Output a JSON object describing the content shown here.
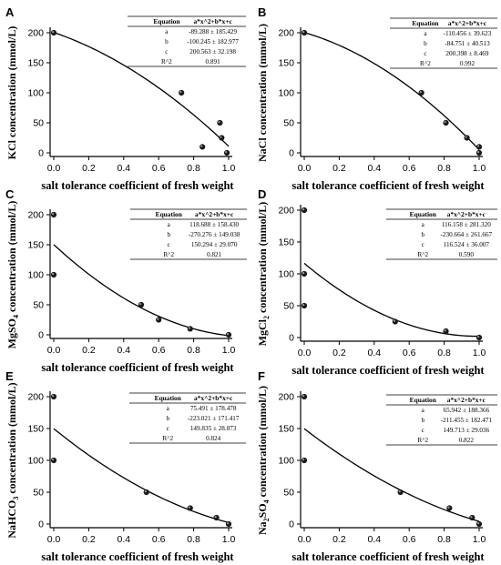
{
  "chart_data": [
    {
      "panel": "A",
      "type": "scatter",
      "ylabel": "KCl  concentration (mmol/L)",
      "xlabel": "salt tolerance coefficient of fresh weight",
      "xlim": [
        0,
        1.0
      ],
      "ylim": [
        0,
        200
      ],
      "xticks": [
        "0.0",
        "0.2",
        "0.4",
        "0.6",
        "0.8",
        "1.0"
      ],
      "yticks": [
        "0",
        "50",
        "100",
        "150",
        "200"
      ],
      "points": [
        [
          0.0,
          200
        ],
        [
          0.73,
          100
        ],
        [
          0.85,
          10
        ],
        [
          0.95,
          50
        ],
        [
          0.96,
          25
        ],
        [
          0.99,
          0
        ]
      ],
      "fit": {
        "a": -89.288,
        "b": -100.245,
        "c": 200.563,
        "x_start": 0.0,
        "x_end": 1.0
      },
      "table": {
        "header": [
          "Equation",
          "a*x^2+b*x+c"
        ],
        "rows": [
          [
            "a",
            "-89.288 ± 185.429"
          ],
          [
            "b",
            "-100.245 ± 182.977"
          ],
          [
            "c",
            "200.563 ± 32.198"
          ],
          [
            "R^2",
            "0.891"
          ]
        ]
      }
    },
    {
      "panel": "B",
      "type": "scatter",
      "ylabel": "NaCl  concentration (mmol/L)",
      "xlabel": "salt tolerance coefficient of fresh weight",
      "xlim": [
        0,
        1.0
      ],
      "ylim": [
        0,
        200
      ],
      "xticks": [
        "0.0",
        "0.2",
        "0.4",
        "0.6",
        "0.8",
        "1.0"
      ],
      "yticks": [
        "0",
        "50",
        "100",
        "150",
        "200"
      ],
      "points": [
        [
          0.0,
          200
        ],
        [
          0.67,
          100
        ],
        [
          0.81,
          50
        ],
        [
          0.93,
          25
        ],
        [
          1.0,
          10
        ],
        [
          1.0,
          0
        ]
      ],
      "fit": {
        "a": -110.456,
        "b": -84.751,
        "c": 200.398,
        "x_start": 0.0,
        "x_end": 1.0
      },
      "table": {
        "header": [
          "Equation",
          "a*x^2+b*x+c"
        ],
        "rows": [
          [
            "a",
            "-110.456 ± 39.623"
          ],
          [
            "b",
            "-84.751 ± 40.513"
          ],
          [
            "c",
            "200.398 ± 8.469"
          ],
          [
            "R^2",
            "0.992"
          ]
        ]
      }
    },
    {
      "panel": "C",
      "type": "scatter",
      "ylabel": "MgSO",
      "ylabel_sub": "4",
      "ylabel_rest": "  concentration (mmol/L)",
      "xlabel": "salt tolerance coefficient of fresh weight",
      "xlim": [
        0,
        1.0
      ],
      "ylim": [
        0,
        200
      ],
      "xticks": [
        "0.0",
        "0.2",
        "0.4",
        "0.6",
        "0.8",
        "1.0"
      ],
      "yticks": [
        "0",
        "50",
        "100",
        "150",
        "200"
      ],
      "points": [
        [
          0.0,
          200
        ],
        [
          0.0,
          100
        ],
        [
          0.5,
          50
        ],
        [
          0.6,
          25
        ],
        [
          0.78,
          10
        ],
        [
          1.0,
          0
        ]
      ],
      "fit": {
        "a": 118.688,
        "b": -270.276,
        "c": 150.294,
        "x_start": 0.0,
        "x_end": 1.0
      },
      "table": {
        "header": [
          "Equation",
          "a*x^2+b*x+c"
        ],
        "rows": [
          [
            "a",
            "118.688 ± 158.430"
          ],
          [
            "b",
            "-270.276 ± 149.038"
          ],
          [
            "c",
            "150.294 ± 29.070"
          ],
          [
            "R^2",
            "0.821"
          ]
        ]
      }
    },
    {
      "panel": "D",
      "type": "scatter",
      "ylabel": "MgCl",
      "ylabel_sub": "2",
      "ylabel_rest": "  concentration (mmol/L)",
      "xlabel": "salt tolerance coefficient of fresh weight",
      "xlim": [
        0,
        1.0
      ],
      "ylim": [
        0,
        200
      ],
      "xticks": [
        "0.0",
        "0.2",
        "0.4",
        "0.6",
        "0.8",
        "1.0"
      ],
      "yticks": [
        "0",
        "50",
        "100",
        "150",
        "200"
      ],
      "points": [
        [
          0.0,
          200
        ],
        [
          0.0,
          100
        ],
        [
          0.0,
          50
        ],
        [
          0.52,
          25
        ],
        [
          0.81,
          10
        ],
        [
          1.0,
          0
        ]
      ],
      "fit": {
        "a": 116.158,
        "b": -230.664,
        "c": 116.524,
        "x_start": 0.0,
        "x_end": 1.0
      },
      "table": {
        "header": [
          "Equation",
          "a*x^2+b*x+c"
        ],
        "rows": [
          [
            "a",
            "116.158 ± 281.320"
          ],
          [
            "b",
            "-230.664 ± 261.667"
          ],
          [
            "c",
            "116.524 ± 36.007"
          ],
          [
            "R^2",
            "0.590"
          ]
        ]
      }
    },
    {
      "panel": "E",
      "type": "scatter",
      "ylabel": "NaHCO",
      "ylabel_sub": "3",
      "ylabel_rest": "  concentration (mmol/L)",
      "xlabel": "salt tolerance coefficient of fresh weight",
      "xlim": [
        0,
        1.0
      ],
      "ylim": [
        0,
        200
      ],
      "xticks": [
        "0.0",
        "0.2",
        "0.4",
        "0.6",
        "0.8",
        "1.0"
      ],
      "yticks": [
        "0",
        "50",
        "100",
        "150",
        "200"
      ],
      "points": [
        [
          0.0,
          200
        ],
        [
          0.0,
          100
        ],
        [
          0.53,
          50
        ],
        [
          0.78,
          25
        ],
        [
          0.93,
          10
        ],
        [
          1.0,
          0
        ]
      ],
      "fit": {
        "a": 75.491,
        "b": -223.021,
        "c": 149.835,
        "x_start": 0.0,
        "x_end": 1.0
      },
      "table": {
        "header": [
          "Equation",
          "a*x^2+b*x+c"
        ],
        "rows": [
          [
            "a",
            "75.491 ± 178.478"
          ],
          [
            "b",
            "-223.021 ± 171.417"
          ],
          [
            "c",
            "149.835 ± 28.873"
          ],
          [
            "R^2",
            "0.824"
          ]
        ]
      }
    },
    {
      "panel": "F",
      "type": "scatter",
      "ylabel": "Na",
      "ylabel_sub": "2",
      "ylabel_rest": "SO",
      "ylabel_sub2": "4",
      "ylabel_rest2": "  concentration (mmol/L)",
      "xlabel": "salt tolerance coefficient of fresh weight",
      "xlim": [
        0,
        1.0
      ],
      "ylim": [
        0,
        200
      ],
      "xticks": [
        "0.0",
        "0.2",
        "0.4",
        "0.6",
        "0.8",
        "1.0"
      ],
      "yticks": [
        "0",
        "50",
        "100",
        "150",
        "200"
      ],
      "points": [
        [
          0.0,
          200
        ],
        [
          0.0,
          100
        ],
        [
          0.55,
          50
        ],
        [
          0.83,
          25
        ],
        [
          0.96,
          10
        ],
        [
          1.0,
          0
        ]
      ],
      "fit": {
        "a": 65.942,
        "b": -211.455,
        "c": 149.713,
        "x_start": 0.0,
        "x_end": 1.0
      },
      "table": {
        "header": [
          "Equation",
          "a*x^2+b*x+c"
        ],
        "rows": [
          [
            "a",
            "65.942 ± 188.366"
          ],
          [
            "b",
            "-211.455 ± 182.471"
          ],
          [
            "c",
            "149.713 ± 29.036"
          ],
          [
            "R^2",
            "0.822"
          ]
        ]
      }
    }
  ]
}
